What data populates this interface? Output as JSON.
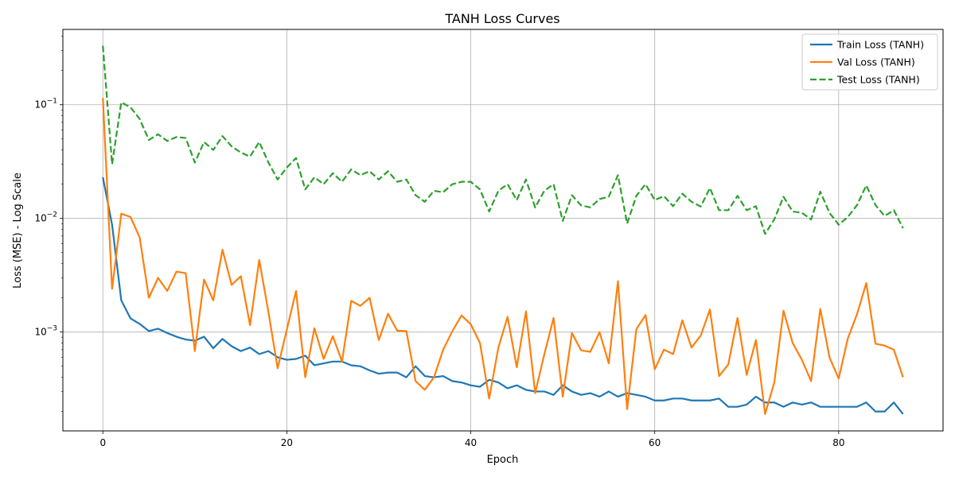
{
  "chart_data": {
    "type": "line",
    "title": "TANH Loss Curves",
    "xlabel": "Epoch",
    "ylabel": "Loss (MSE) - Log Scale",
    "yscale": "log",
    "xlim": [
      -4.35,
      91.35
    ],
    "ylim": [
      0.000135,
      0.46
    ],
    "x_ticks": [
      0,
      20,
      40,
      60,
      80
    ],
    "x_tick_labels": [
      "0",
      "20",
      "40",
      "60",
      "80"
    ],
    "y_ticks": [
      0.001,
      0.01,
      0.1
    ],
    "y_tick_labels": [
      {
        "base": "10",
        "exp": "−3"
      },
      {
        "base": "10",
        "exp": "−2"
      },
      {
        "base": "10",
        "exp": "−1"
      }
    ],
    "grid": true,
    "legend_position": "top-right",
    "x": [
      0,
      1,
      2,
      3,
      4,
      5,
      6,
      7,
      8,
      9,
      10,
      11,
      12,
      13,
      14,
      15,
      16,
      17,
      18,
      19,
      20,
      21,
      22,
      23,
      24,
      25,
      26,
      27,
      28,
      29,
      30,
      31,
      32,
      33,
      34,
      35,
      36,
      37,
      38,
      39,
      40,
      41,
      42,
      43,
      44,
      45,
      46,
      47,
      48,
      49,
      50,
      51,
      52,
      53,
      54,
      55,
      56,
      57,
      58,
      59,
      60,
      61,
      62,
      63,
      64,
      65,
      66,
      67,
      68,
      69,
      70,
      71,
      72,
      73,
      74,
      75,
      76,
      77,
      78,
      79,
      80,
      81,
      82,
      83,
      84,
      85,
      86,
      87
    ],
    "series": [
      {
        "name": "Train Loss (TANH)",
        "color": "#1f77b4",
        "dash": "solid",
        "values": [
          0.023,
          0.0088,
          0.0019,
          0.00132,
          0.00118,
          0.00102,
          0.00107,
          0.00098,
          0.00091,
          0.00086,
          0.00084,
          0.00091,
          0.00072,
          0.00087,
          0.00075,
          0.00068,
          0.00073,
          0.00064,
          0.00068,
          0.0006,
          0.00057,
          0.00058,
          0.00062,
          0.00051,
          0.00053,
          0.00055,
          0.00055,
          0.00051,
          0.0005,
          0.00046,
          0.00043,
          0.00044,
          0.00044,
          0.0004,
          0.0005,
          0.00041,
          0.0004,
          0.00041,
          0.00037,
          0.00036,
          0.00034,
          0.00033,
          0.00038,
          0.00036,
          0.00032,
          0.00034,
          0.00031,
          0.0003,
          0.0003,
          0.00028,
          0.00034,
          0.0003,
          0.00028,
          0.00029,
          0.00027,
          0.0003,
          0.00027,
          0.00029,
          0.00028,
          0.00027,
          0.00025,
          0.00025,
          0.00026,
          0.00026,
          0.00025,
          0.00025,
          0.00025,
          0.00026,
          0.00022,
          0.00022,
          0.00023,
          0.00027,
          0.00024,
          0.00024,
          0.00022,
          0.00024,
          0.00023,
          0.00024,
          0.00022,
          0.00022,
          0.00022,
          0.00022,
          0.00022,
          0.00024,
          0.0002,
          0.0002,
          0.00024,
          0.00019
        ]
      },
      {
        "name": "Val Loss (TANH)",
        "color": "#ff7f0e",
        "dash": "solid",
        "values": [
          0.115,
          0.0024,
          0.011,
          0.0103,
          0.0068,
          0.002,
          0.003,
          0.0023,
          0.0034,
          0.0033,
          0.00068,
          0.0029,
          0.0019,
          0.0053,
          0.0026,
          0.0031,
          0.00115,
          0.0043,
          0.0015,
          0.00048,
          0.00105,
          0.0023,
          0.0004,
          0.00108,
          0.00058,
          0.00092,
          0.00055,
          0.00188,
          0.0017,
          0.002,
          0.00085,
          0.00145,
          0.00103,
          0.00102,
          0.00037,
          0.00031,
          0.0004,
          0.0007,
          0.00102,
          0.0014,
          0.00117,
          0.0008,
          0.00026,
          0.00073,
          0.00136,
          0.00049,
          0.00152,
          0.00029,
          0.00064,
          0.00133,
          0.00027,
          0.00098,
          0.00069,
          0.00067,
          0.001,
          0.00053,
          0.0028,
          0.00021,
          0.00106,
          0.00141,
          0.00047,
          0.0007,
          0.00064,
          0.00127,
          0.00073,
          0.00093,
          0.00158,
          0.00041,
          0.00052,
          0.00133,
          0.00042,
          0.00085,
          0.00019,
          0.00036,
          0.00154,
          0.0008,
          0.00057,
          0.00037,
          0.0016,
          0.0006,
          0.00039,
          0.00088,
          0.00144,
          0.0027,
          0.00079,
          0.00076,
          0.0007,
          0.0004
        ]
      },
      {
        "name": "Test Loss (TANH)",
        "color": "#2ca02c",
        "dash": "dashed",
        "values": [
          0.33,
          0.03,
          0.105,
          0.095,
          0.075,
          0.049,
          0.055,
          0.048,
          0.052,
          0.051,
          0.031,
          0.047,
          0.04,
          0.053,
          0.043,
          0.038,
          0.035,
          0.047,
          0.031,
          0.022,
          0.028,
          0.034,
          0.018,
          0.023,
          0.02,
          0.025,
          0.021,
          0.027,
          0.024,
          0.026,
          0.022,
          0.026,
          0.021,
          0.022,
          0.016,
          0.014,
          0.0175,
          0.017,
          0.02,
          0.021,
          0.021,
          0.018,
          0.0115,
          0.0175,
          0.02,
          0.0145,
          0.022,
          0.0125,
          0.0175,
          0.02,
          0.0095,
          0.016,
          0.013,
          0.0125,
          0.0148,
          0.0155,
          0.024,
          0.009,
          0.0158,
          0.02,
          0.0145,
          0.0157,
          0.0128,
          0.0165,
          0.014,
          0.0127,
          0.0185,
          0.0118,
          0.0118,
          0.0158,
          0.0118,
          0.0128,
          0.0073,
          0.0098,
          0.0155,
          0.0115,
          0.0112,
          0.0098,
          0.0172,
          0.0112,
          0.0088,
          0.0103,
          0.0131,
          0.0195,
          0.0131,
          0.0105,
          0.0118,
          0.0082
        ]
      }
    ]
  }
}
